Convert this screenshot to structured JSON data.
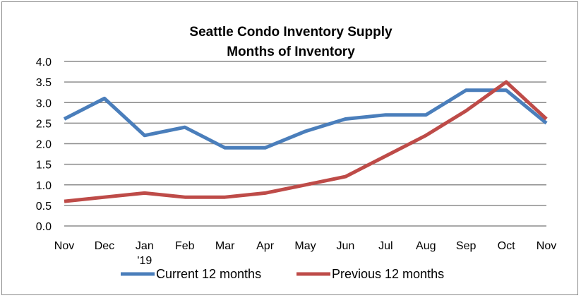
{
  "chart_data": {
    "type": "line",
    "title": "Seattle Condo Inventory Supply",
    "subtitle": "Months of Inventory",
    "xlabel": "",
    "ylabel": "",
    "categories": [
      "Nov",
      "Dec",
      "Jan",
      "Feb",
      "Mar",
      "Apr",
      "May",
      "Jun",
      "Jul",
      "Aug",
      "Sep",
      "Oct",
      "Nov"
    ],
    "category_sublabels": [
      "",
      "",
      "'19",
      "",
      "",
      "",
      "",
      "",
      "",
      "",
      "",
      "",
      ""
    ],
    "ylim": [
      0,
      4
    ],
    "yticks": [
      "0.0",
      "0.5",
      "1.0",
      "1.5",
      "2.0",
      "2.5",
      "3.0",
      "3.5",
      "4.0"
    ],
    "grid": true,
    "legend_position": "bottom",
    "series": [
      {
        "name": "Current 12 months",
        "color": "#4a7ebb",
        "values": [
          2.6,
          3.1,
          2.2,
          2.4,
          1.9,
          1.9,
          2.3,
          2.6,
          2.7,
          2.7,
          3.3,
          3.3,
          2.5
        ]
      },
      {
        "name": "Previous 12 months",
        "color": "#be4b48",
        "values": [
          0.6,
          0.7,
          0.8,
          0.7,
          0.7,
          0.8,
          1.0,
          1.2,
          1.7,
          2.2,
          2.8,
          3.5,
          2.6
        ]
      }
    ]
  }
}
